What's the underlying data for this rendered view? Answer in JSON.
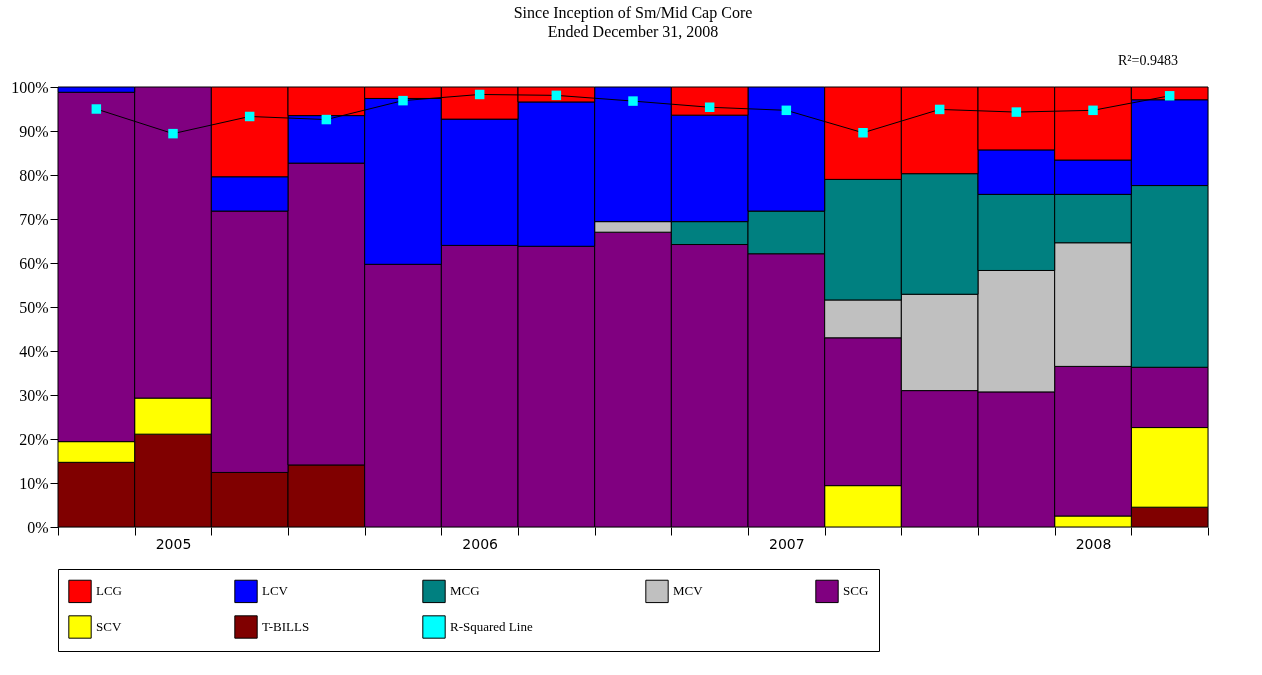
{
  "chart_data": {
    "type": "bar",
    "title": "Since Inception of Sm/Mid Cap Core",
    "subtitle": "Ended December 31, 2008",
    "categories": [
      null,
      "2005",
      null,
      null,
      null,
      "2006",
      null,
      null,
      null,
      "2007",
      null,
      null,
      null,
      "2008",
      null
    ],
    "stacked": true,
    "series": [
      {
        "name": "T-BILLS",
        "color": "#800000",
        "values": [
          14.7,
          21.1,
          12.4,
          14.1,
          null,
          null,
          null,
          null,
          null,
          null,
          null,
          null,
          null,
          null,
          4.5
        ]
      },
      {
        "name": "SCV",
        "color": "#ffff00",
        "values": [
          4.7,
          8.2,
          null,
          null,
          null,
          null,
          null,
          null,
          null,
          null,
          9.4,
          null,
          null,
          2.5,
          18.1
        ]
      },
      {
        "name": "SCG",
        "color": "#800080",
        "values": [
          79.4,
          70.7,
          59.4,
          68.6,
          59.7,
          64.0,
          63.8,
          67.0,
          64.2,
          62.1,
          33.6,
          31.0,
          30.7,
          34.0,
          13.7
        ]
      },
      {
        "name": "MCV",
        "color": "#c0c0c0",
        "values": [
          null,
          null,
          null,
          null,
          null,
          null,
          null,
          2.4,
          null,
          null,
          8.6,
          21.9,
          27.6,
          28.1,
          null
        ]
      },
      {
        "name": "MCG",
        "color": "#008080",
        "values": [
          null,
          null,
          null,
          null,
          null,
          null,
          null,
          null,
          5.2,
          9.7,
          27.4,
          27.4,
          17.3,
          11.0,
          41.3
        ]
      },
      {
        "name": "LCV",
        "color": "#0000ff",
        "values": [
          1.2,
          null,
          7.8,
          10.8,
          37.7,
          28.7,
          32.8,
          30.6,
          24.2,
          28.2,
          null,
          null,
          10.1,
          7.8,
          19.5
        ]
      },
      {
        "name": "LCG",
        "color": "#ff0000",
        "values": [
          null,
          null,
          20.4,
          6.5,
          2.6,
          7.3,
          3.4,
          null,
          6.4,
          null,
          21.0,
          19.7,
          14.3,
          16.6,
          2.9
        ]
      },
      {
        "name": "R-Squared Line",
        "type": "line",
        "color": "#00ffff",
        "marker": "square",
        "values": [
          95.0,
          89.4,
          93.3,
          92.6,
          96.9,
          98.3,
          98.1,
          96.8,
          95.4,
          94.7,
          89.6,
          94.9,
          94.3,
          94.7,
          98.0
        ]
      }
    ],
    "ylim": [
      0,
      100
    ],
    "yticks": [
      {
        "value": 0,
        "label": "0%"
      },
      {
        "value": 10,
        "label": "10%"
      },
      {
        "value": 20,
        "label": "20%"
      },
      {
        "value": 30,
        "label": "30%"
      },
      {
        "value": 40,
        "label": "40%"
      },
      {
        "value": 50,
        "label": "50%"
      },
      {
        "value": 60,
        "label": "60%"
      },
      {
        "value": 70,
        "label": "70%"
      },
      {
        "value": 80,
        "label": "80%"
      },
      {
        "value": 90,
        "label": "90%"
      },
      {
        "value": 100,
        "label": "100%"
      }
    ],
    "legend": "bottom",
    "annotations": [
      "R²=0.9483"
    ]
  }
}
